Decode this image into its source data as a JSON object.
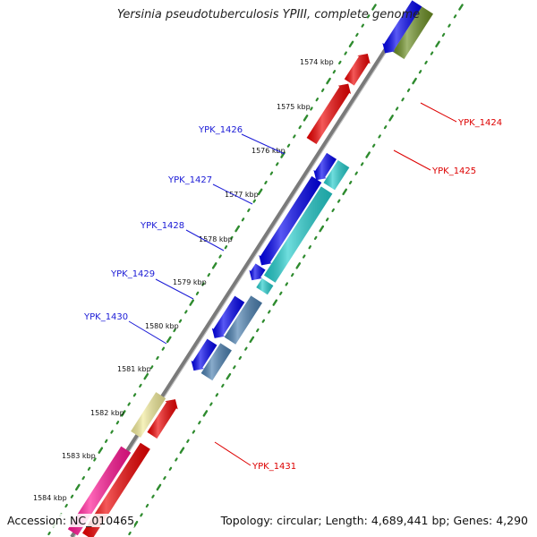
{
  "title": "Yersinia pseudotuberculosis YPIII, complete genome",
  "footer": {
    "accession": "Accession: NC_010465",
    "summary": "Topology: circular; Length: 4,689,441 bp; Genes: 4,290"
  },
  "kbp_ticks": [
    "1574 kbp",
    "1575 kbp",
    "1576 kbp",
    "1577 kbp",
    "1578 kbp",
    "1579 kbp",
    "1580 kbp",
    "1581 kbp",
    "1582 kbp",
    "1583 kbp",
    "1584 kbp"
  ],
  "gene_labels": [
    {
      "name": "YPK_1424",
      "color": "#dd0000"
    },
    {
      "name": "YPK_1425",
      "color": "#dd0000"
    },
    {
      "name": "YPK_1426",
      "color": "#1a1ad6"
    },
    {
      "name": "YPK_1427",
      "color": "#1a1ad6"
    },
    {
      "name": "YPK_1428",
      "color": "#1a1ad6"
    },
    {
      "name": "YPK_1429",
      "color": "#1a1ad6"
    },
    {
      "name": "YPK_1430",
      "color": "#1a1ad6"
    },
    {
      "name": "YPK_1431",
      "color": "#dd0000"
    }
  ],
  "colors": {
    "backbone": "#888888",
    "dots": "#2e8b2e",
    "red": "#ee0000",
    "blue": "#0000ee",
    "cyan": "#22cccc",
    "steel": "#4a7fb0",
    "olive": "#6b8e23",
    "yellow": "#f2eb99",
    "pink": "#ff1493"
  }
}
